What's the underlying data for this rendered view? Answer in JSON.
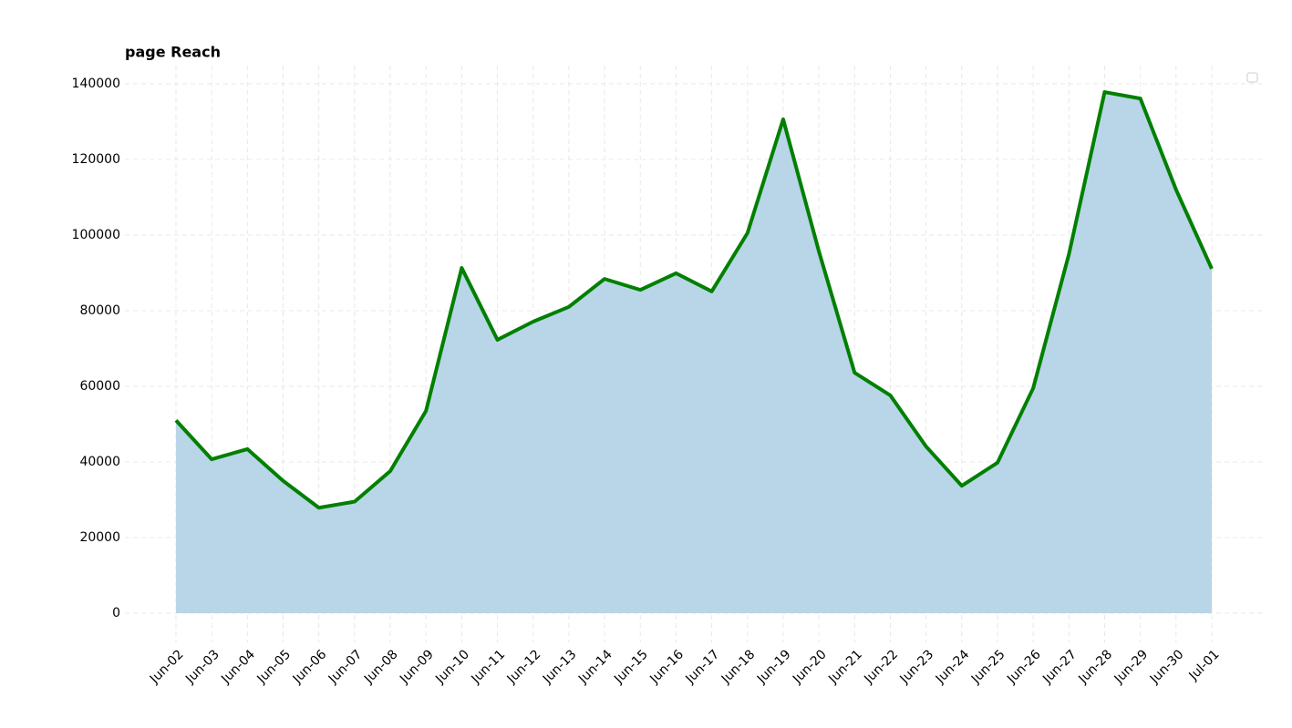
{
  "chart_data": {
    "type": "line",
    "title": "page Reach",
    "categories": [
      "Jun-02",
      "Jun-03",
      "Jun-04",
      "Jun-05",
      "Jun-06",
      "Jun-07",
      "Jun-08",
      "Jun-09",
      "Jun-10",
      "Jun-11",
      "Jun-12",
      "Jun-13",
      "Jun-14",
      "Jun-15",
      "Jun-16",
      "Jun-17",
      "Jun-18",
      "Jun-19",
      "Jun-20",
      "Jun-21",
      "Jun-22",
      "Jun-23",
      "Jun-24",
      "Jun-25",
      "Jun-26",
      "Jun-27",
      "Jun-28",
      "Jun-29",
      "Jun-30",
      "Jul-01"
    ],
    "values": [
      51000,
      40700,
      43400,
      35000,
      27900,
      29500,
      37600,
      53500,
      91300,
      72300,
      77100,
      81000,
      88400,
      85500,
      89900,
      85100,
      100500,
      130600,
      95700,
      63600,
      57600,
      44100,
      33700,
      39800,
      59500,
      94900,
      137800,
      136100,
      112000,
      91100
    ],
    "color": "#008000",
    "fill_color": "#b9d5e8",
    "ylim": [
      -7700,
      144800
    ],
    "yticks": [
      0,
      20000,
      40000,
      60000,
      80000,
      100000,
      120000,
      140000
    ],
    "grid": true
  }
}
